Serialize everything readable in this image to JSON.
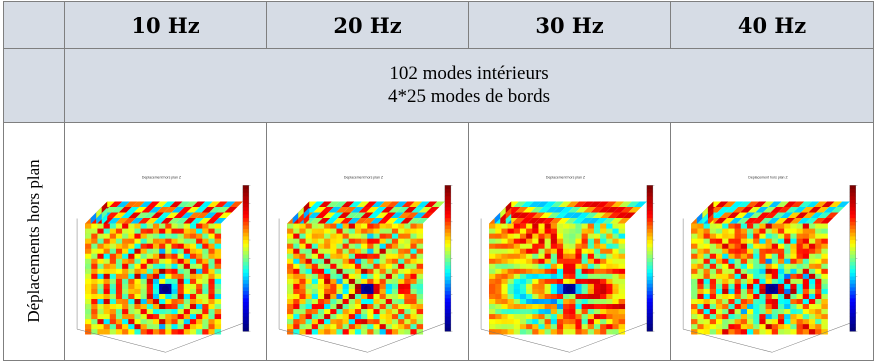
{
  "table": {
    "frequencies": [
      "10 Hz",
      "20 Hz",
      "30 Hz",
      "40 Hz"
    ],
    "modes_line1": "102 modes intérieurs",
    "modes_line2": "4*25 modes de bords",
    "row_label": "Déplacements hors plan"
  },
  "plots": [
    {
      "title": "Deplacement hors plan Z",
      "pattern": "cells",
      "density": 5
    },
    {
      "title": "Deplacement hors plan Z",
      "pattern": "cells",
      "density": 9
    },
    {
      "title": "Deplacement hors plan Z",
      "pattern": "cells",
      "density": 13
    },
    {
      "title": "Deplacement hors plan Z",
      "pattern": "cells",
      "density": 17
    }
  ],
  "colors": {
    "header_fill": "#d6dce5",
    "border": "#7f7f7f",
    "jet": [
      "#00007f",
      "#0000ff",
      "#00ffff",
      "#ffff00",
      "#ff0000",
      "#7f0000"
    ]
  }
}
